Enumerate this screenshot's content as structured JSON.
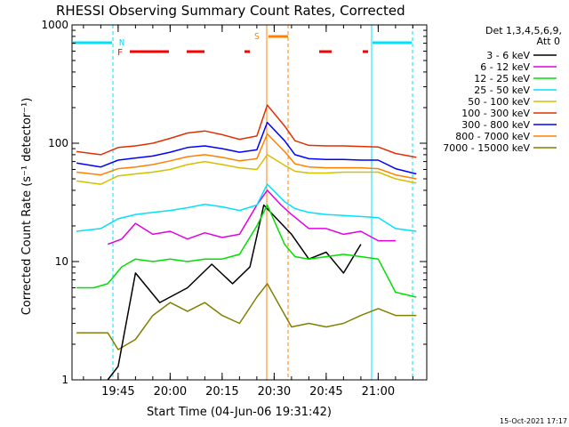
{
  "chart_data": {
    "type": "line",
    "title": "RHESSI Observing Summary Count Rates, Corrected",
    "xlabel": "Start Time (04-Jun-06 19:31:42)",
    "ylabel": "Corrected Count Rate (s⁻¹ detector⁻¹)",
    "y_scale": "log",
    "ylim": [
      1,
      1000
    ],
    "xlim": [
      "19:31:42",
      "21:14:00"
    ],
    "x_ticks": [
      "19:45",
      "20:00",
      "20:15",
      "20:30",
      "20:45",
      "21:00"
    ],
    "y_ticks": [
      "1",
      "10",
      "100",
      "1000"
    ],
    "legend": {
      "header": [
        "Det 1,3,4,5,6,9,",
        "Att 0"
      ],
      "placement": "outside-right"
    },
    "series": [
      {
        "name": "3 - 6 keV",
        "color": "#000000",
        "x": [
          "19:42",
          "19:45",
          "19:50",
          "19:57",
          "20:05",
          "20:12",
          "20:18",
          "20:23",
          "20:27",
          "20:35",
          "20:40",
          "20:45",
          "20:50",
          "20:55"
        ],
        "values": [
          1.0,
          1.3,
          8.0,
          4.5,
          6.0,
          9.5,
          6.5,
          9.0,
          30.0,
          17.0,
          10.5,
          12.0,
          8.0,
          14.0
        ]
      },
      {
        "name": "6 - 12 keV",
        "color": "#e000e0",
        "x": [
          "19:42",
          "19:46",
          "19:50",
          "19:55",
          "20:00",
          "20:05",
          "20:10",
          "20:15",
          "20:20",
          "20:25",
          "20:28",
          "20:32",
          "20:35",
          "20:40",
          "20:45",
          "20:50",
          "20:55",
          "21:00",
          "21:05"
        ],
        "values": [
          14.0,
          15.5,
          21.0,
          17.0,
          18.0,
          15.5,
          17.5,
          16.0,
          17.0,
          30.0,
          40.0,
          30.0,
          25.0,
          19.0,
          19.0,
          17.0,
          18.0,
          15.0,
          15.0
        ]
      },
      {
        "name": "12 - 25 keV",
        "color": "#00e000",
        "x": [
          "19:33",
          "19:38",
          "19:42",
          "19:46",
          "19:50",
          "19:55",
          "20:00",
          "20:05",
          "20:10",
          "20:15",
          "20:20",
          "20:25",
          "20:28",
          "20:33",
          "20:36",
          "20:40",
          "20:45",
          "20:50",
          "20:55",
          "21:00",
          "21:05",
          "21:11"
        ],
        "values": [
          6.0,
          6.0,
          6.5,
          9.0,
          10.5,
          10.0,
          10.5,
          10.0,
          10.5,
          10.5,
          11.5,
          20.0,
          30.0,
          14.0,
          11.0,
          10.5,
          11.0,
          11.5,
          11.0,
          10.5,
          5.5,
          5.0
        ]
      },
      {
        "name": "25 - 50 keV",
        "color": "#00e0ff",
        "x": [
          "19:33",
          "19:40",
          "19:45",
          "19:50",
          "19:55",
          "20:00",
          "20:05",
          "20:10",
          "20:15",
          "20:20",
          "20:25",
          "20:28",
          "20:33",
          "20:36",
          "20:40",
          "20:45",
          "20:50",
          "20:55",
          "21:00",
          "21:05",
          "21:11"
        ],
        "values": [
          18.0,
          19.0,
          23.0,
          25.0,
          26.0,
          27.0,
          28.5,
          30.5,
          29.0,
          27.0,
          30.0,
          45.0,
          32.0,
          28.0,
          26.0,
          25.0,
          24.5,
          24.0,
          23.5,
          19.0,
          18.0
        ]
      },
      {
        "name": "50 - 100 keV",
        "color": "#d4c000",
        "x": [
          "19:33",
          "19:40",
          "19:45",
          "19:50",
          "19:55",
          "20:00",
          "20:05",
          "20:10",
          "20:15",
          "20:20",
          "20:25",
          "20:28",
          "20:33",
          "20:36",
          "20:40",
          "20:45",
          "20:50",
          "20:55",
          "21:00",
          "21:05",
          "21:11"
        ],
        "values": [
          48.0,
          45.0,
          53.0,
          55.0,
          57.0,
          60.0,
          66.0,
          70.0,
          66.0,
          62.0,
          60.0,
          80.0,
          65.0,
          58.0,
          56.0,
          56.0,
          57.0,
          57.0,
          57.0,
          50.0,
          46.0
        ]
      },
      {
        "name": "100 - 300 keV",
        "color": "#e03000",
        "x": [
          "19:33",
          "19:40",
          "19:45",
          "19:50",
          "19:55",
          "20:00",
          "20:05",
          "20:10",
          "20:15",
          "20:20",
          "20:25",
          "20:28",
          "20:33",
          "20:36",
          "20:40",
          "20:45",
          "20:50",
          "20:55",
          "21:00",
          "21:05",
          "21:11"
        ],
        "values": [
          85.0,
          80.0,
          92.0,
          95.0,
          100.0,
          110.0,
          122.0,
          127.0,
          118.0,
          108.0,
          115.0,
          210.0,
          140.0,
          105.0,
          96.0,
          95.0,
          95.0,
          94.0,
          93.0,
          82.0,
          76.0
        ]
      },
      {
        "name": "300 - 800 keV",
        "color": "#0000ff",
        "x": [
          "19:33",
          "19:40",
          "19:45",
          "19:50",
          "19:55",
          "20:00",
          "20:05",
          "20:10",
          "20:15",
          "20:20",
          "20:25",
          "20:28",
          "20:33",
          "20:36",
          "20:40",
          "20:45",
          "20:50",
          "20:55",
          "21:00",
          "21:05",
          "21:11"
        ],
        "values": [
          68.0,
          63.0,
          72.0,
          75.0,
          78.0,
          84.0,
          92.0,
          95.0,
          90.0,
          84.0,
          88.0,
          150.0,
          105.0,
          80.0,
          74.0,
          73.0,
          73.0,
          72.0,
          72.0,
          61.0,
          55.0
        ]
      },
      {
        "name": "800 - 7000 keV",
        "color": "#ff8000",
        "x": [
          "19:33",
          "19:40",
          "19:45",
          "19:50",
          "19:55",
          "20:00",
          "20:05",
          "20:10",
          "20:15",
          "20:20",
          "20:25",
          "20:28",
          "20:33",
          "20:36",
          "20:40",
          "20:45",
          "20:50",
          "20:55",
          "21:00",
          "21:05",
          "21:11"
        ],
        "values": [
          57.0,
          54.0,
          61.0,
          63.0,
          66.0,
          71.0,
          77.0,
          80.0,
          76.0,
          71.0,
          74.0,
          120.0,
          85.0,
          67.0,
          63.0,
          62.0,
          62.0,
          62.0,
          61.0,
          54.0,
          50.0
        ]
      },
      {
        "name": "7000 - 15000 keV",
        "color": "#808000",
        "x": [
          "19:33",
          "19:42",
          "19:45",
          "19:50",
          "19:55",
          "20:00",
          "20:05",
          "20:10",
          "20:15",
          "20:20",
          "20:25",
          "20:28",
          "20:35",
          "20:40",
          "20:45",
          "20:50",
          "20:55",
          "21:00",
          "21:05",
          "21:11"
        ],
        "values": [
          2.5,
          2.5,
          1.8,
          2.2,
          3.5,
          4.5,
          3.8,
          4.5,
          3.5,
          3.0,
          5.0,
          6.5,
          2.8,
          3.0,
          2.8,
          3.0,
          3.5,
          4.0,
          3.5,
          3.5
        ]
      }
    ],
    "annotations": [
      {
        "label": "N",
        "color": "#00e0ff"
      },
      {
        "label": "F",
        "color": "#ff0000"
      },
      {
        "label": "S",
        "color": "#ff8000"
      }
    ],
    "footer": "15-Oct-2021 17:17"
  }
}
